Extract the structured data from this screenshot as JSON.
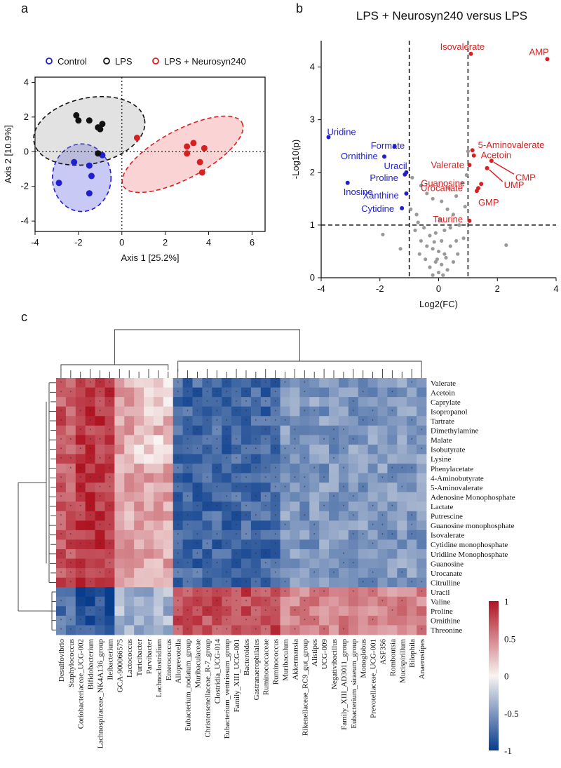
{
  "panels": {
    "a": "a",
    "b": "b",
    "c": "c"
  },
  "chart_data": [
    {
      "type": "scatter",
      "title": "",
      "xlabel": "Axis 1 [25.2%]",
      "ylabel": "Axis 2 [10.9%]",
      "xlim": [
        -4,
        6.6
      ],
      "ylim": [
        -4.6,
        4.3
      ],
      "xticks": [
        -4,
        -2,
        0,
        2,
        4,
        6
      ],
      "yticks": [
        4,
        2,
        0,
        -2,
        -4
      ],
      "legend": [
        "Control",
        "LPS",
        "LPS + Neurosyn240"
      ],
      "colors": {
        "Control": "#1f1fcf",
        "LPS": "#111111",
        "LPS + Neurosyn240": "#d92020"
      },
      "series": [
        {
          "name": "Control",
          "points": [
            [
              -2.9,
              -1.8
            ],
            [
              -2.2,
              -0.6
            ],
            [
              -1.5,
              -0.8
            ],
            [
              -1.4,
              -1.4
            ],
            [
              -1.5,
              -2.4
            ],
            [
              -0.9,
              -0.2
            ]
          ],
          "ellipse": {
            "cx": -1.85,
            "cy": -1.5,
            "rx": 1.35,
            "ry": 1.95,
            "angle": 0
          }
        },
        {
          "name": "LPS",
          "points": [
            [
              -2.1,
              2.1
            ],
            [
              -2.0,
              1.8
            ],
            [
              -1.5,
              1.8
            ],
            [
              -1.1,
              1.4
            ],
            [
              -0.9,
              1.6
            ],
            [
              -1.0,
              1.3
            ],
            [
              -1.1,
              -0.1
            ]
          ],
          "ellipse": {
            "cx": -1.5,
            "cy": 1.2,
            "rx": 2.6,
            "ry": 1.9,
            "angle": -12
          }
        },
        {
          "name": "LPS + Neurosyn240",
          "points": [
            [
              0.7,
              0.8
            ],
            [
              3.0,
              0.3
            ],
            [
              3.3,
              0.5
            ],
            [
              3.0,
              -0.1
            ],
            [
              3.8,
              0.2
            ],
            [
              3.6,
              -0.6
            ],
            [
              3.7,
              -1.2
            ]
          ],
          "ellipse": {
            "cx": 2.8,
            "cy": -0.15,
            "rx": 3.1,
            "ry": 1.4,
            "angle": -28
          }
        }
      ]
    },
    {
      "type": "scatter",
      "title": "LPS + Neurosyn240 versus LPS",
      "xlabel": "Log2(FC)",
      "ylabel": "-Log10(p)",
      "xlim": [
        -4,
        4
      ],
      "ylim": [
        0,
        4.5
      ],
      "xticks": [
        -4,
        -2,
        0,
        2,
        4
      ],
      "yticks": [
        0,
        1,
        2,
        3,
        4
      ],
      "thresholds": {
        "fc_low": -1,
        "fc_high": 1,
        "p": 1
      },
      "colors": {
        "down": "#1f1fcf",
        "up": "#d92020",
        "ns": "#999999"
      },
      "labeled_points": [
        {
          "name": "Isovalerate",
          "x": 1.1,
          "y": 4.25,
          "group": "up"
        },
        {
          "name": "AMP",
          "x": 3.7,
          "y": 4.15,
          "group": "up"
        },
        {
          "name": "5-Aminovalerate",
          "x": 1.15,
          "y": 2.42,
          "group": "up"
        },
        {
          "name": "Acetoin",
          "x": 1.2,
          "y": 2.32,
          "group": "up"
        },
        {
          "name": "CMP",
          "x": 1.8,
          "y": 2.22,
          "group": "up"
        },
        {
          "name": "Valerate",
          "x": 1.05,
          "y": 2.14,
          "group": "up"
        },
        {
          "name": "UMP",
          "x": 1.65,
          "y": 2.08,
          "group": "up"
        },
        {
          "name": "Guanosine",
          "x": 1.45,
          "y": 1.78,
          "group": "up"
        },
        {
          "name": "Urocanate",
          "x": 1.35,
          "y": 1.7,
          "group": "up"
        },
        {
          "name": "GMP",
          "x": 1.3,
          "y": 1.65,
          "group": "up"
        },
        {
          "name": "Taurine",
          "x": 1.05,
          "y": 1.08,
          "group": "up"
        },
        {
          "name": "Uridine",
          "x": -3.75,
          "y": 2.67,
          "group": "down"
        },
        {
          "name": "Formate",
          "x": -1.5,
          "y": 2.49,
          "group": "down"
        },
        {
          "name": "Ornithine",
          "x": -1.85,
          "y": 2.3,
          "group": "down"
        },
        {
          "name": "Uracil",
          "x": -1.1,
          "y": 2.0,
          "group": "down"
        },
        {
          "name": "Proline",
          "x": -1.15,
          "y": 1.96,
          "group": "down"
        },
        {
          "name": "Inosine",
          "x": -3.1,
          "y": 1.8,
          "group": "down"
        },
        {
          "name": "Xanthine",
          "x": -1.1,
          "y": 1.6,
          "group": "down"
        },
        {
          "name": "Cytidine",
          "x": -1.25,
          "y": 1.32,
          "group": "down"
        }
      ],
      "ns_points": [
        [
          -0.9,
          1.9
        ],
        [
          -0.6,
          1.75
        ],
        [
          -0.4,
          1.6
        ],
        [
          -0.2,
          1.5
        ],
        [
          0.1,
          1.45
        ],
        [
          0.3,
          1.3
        ],
        [
          0.5,
          1.2
        ],
        [
          0.6,
          1.55
        ],
        [
          0.8,
          1.8
        ],
        [
          0.95,
          1.95
        ],
        [
          0.7,
          1.0
        ],
        [
          0.4,
          0.95
        ],
        [
          0.2,
          0.9
        ],
        [
          -0.1,
          0.85
        ],
        [
          -0.3,
          0.8
        ],
        [
          -0.5,
          0.95
        ],
        [
          -0.7,
          1.05
        ],
        [
          -0.8,
          0.9
        ],
        [
          -0.6,
          0.7
        ],
        [
          -0.4,
          0.6
        ],
        [
          -0.2,
          0.55
        ],
        [
          0.0,
          0.5
        ],
        [
          0.2,
          0.45
        ],
        [
          0.4,
          0.6
        ],
        [
          0.6,
          0.7
        ],
        [
          0.85,
          0.75
        ],
        [
          -1.9,
          0.82
        ],
        [
          -1.3,
          0.55
        ],
        [
          2.3,
          0.62
        ],
        [
          -0.1,
          0.3
        ],
        [
          0.1,
          0.25
        ],
        [
          -0.3,
          0.2
        ],
        [
          0.3,
          0.15
        ],
        [
          0.0,
          0.1
        ],
        [
          -0.2,
          0.05
        ],
        [
          0.15,
          0.05
        ],
        [
          -0.05,
          0.35
        ],
        [
          0.25,
          0.38
        ],
        [
          -0.45,
          0.35
        ],
        [
          0.5,
          0.3
        ],
        [
          0.65,
          0.45
        ],
        [
          -0.65,
          0.45
        ],
        [
          0.1,
          0.7
        ],
        [
          -0.15,
          0.68
        ],
        [
          0.9,
          1.35
        ],
        [
          -0.95,
          1.3
        ],
        [
          1.0,
          2.4
        ],
        [
          -0.75,
          1.2
        ],
        [
          0.05,
          1.1
        ],
        [
          0.35,
          1.7
        ]
      ]
    },
    {
      "type": "heatmap",
      "title": "",
      "xlabel": "",
      "ylabel": "",
      "rows": [
        "Valerate",
        "Acetoin",
        "Caprylate",
        "Isopropanol",
        "Tartrate",
        "Dimethylamine",
        "Malate",
        "Isobutyrate",
        "Lysine",
        "Phenylacetate",
        "4-Aminobutyrate",
        "5-Aminovalerate",
        "Adenosine Monophosphate",
        "Lactate",
        "Putrescine",
        "Guanosine monophosphate",
        "Isovalerate",
        "Cytidine monophosphate",
        "Uridiine Monophosphate",
        "Guanosine",
        "Urocanate",
        "Citrulline",
        "Uracil",
        "Valine",
        "Proline",
        "Ornithine",
        "Threonine"
      ],
      "columns": [
        "Desulfovibrio",
        "Staphylococcus",
        "Coriobacteriaceae_UCG-002",
        "Bifidobacterium",
        "Lachnospiraceae_NK4A136_group",
        "Ileibacterium",
        "GCA-900066575",
        "Lactococcus",
        "Turicibacter",
        "Parvibacter",
        "Lachnoclostridium",
        "Enterococcus",
        "Alloprevotella",
        "Eubacterium_nodatum_group",
        "Muribaculaceae",
        "Christensenellaceae_R-7_group",
        "Clostridia_UCG-014",
        "Eubacterium_ventriosum_group",
        "Family_XIII_UCG-001",
        "Bacteroides",
        "Gastranaerophilales",
        "Ruminococcaceae",
        "Ruminococcus",
        "Muribaculum",
        "Akkermansia",
        "Rikenellaceae_RC9_gut_group",
        "Alistipes",
        "UCG-009",
        "Negativibacillus",
        "Family_XIII_AD3011_group",
        "Eubacterium_siraeum_group",
        "Monoglobus",
        "Prevotellaceae_UCG-001",
        "ASF356",
        "Romboutsia",
        "Mucispirillum",
        "Bilophila",
        "Anaerostipes"
      ],
      "colorbar": {
        "ticks": [
          "1",
          "0.5",
          "0",
          "-0.5",
          "-1"
        ],
        "tick_values": [
          1,
          0.5,
          0,
          -0.5,
          -1
        ],
        "range": [
          -1,
          1
        ]
      }
    }
  ]
}
